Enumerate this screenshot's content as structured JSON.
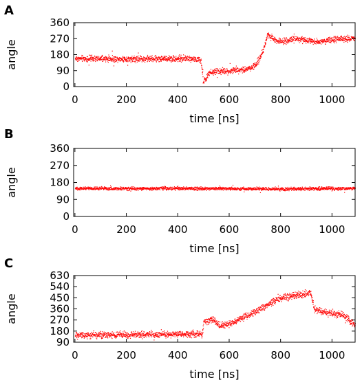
{
  "chart_data": [
    {
      "panel_label": "A",
      "type": "scatter",
      "xlabel": "time [ns]",
      "ylabel": "angle",
      "xlim": [
        -5,
        1090
      ],
      "ylim": [
        0,
        360
      ],
      "xticks": [
        0,
        200,
        400,
        600,
        800,
        1000
      ],
      "yticks": [
        0,
        90,
        180,
        270,
        360
      ],
      "grid": false,
      "color": "#ff0000",
      "trace": [
        {
          "x": 0,
          "y": 160
        },
        {
          "x": 100,
          "y": 158
        },
        {
          "x": 200,
          "y": 158
        },
        {
          "x": 300,
          "y": 159
        },
        {
          "x": 400,
          "y": 160
        },
        {
          "x": 450,
          "y": 160
        },
        {
          "x": 470,
          "y": 155
        },
        {
          "x": 490,
          "y": 145
        },
        {
          "x": 498,
          "y": 30
        },
        {
          "x": 505,
          "y": 40
        },
        {
          "x": 520,
          "y": 75
        },
        {
          "x": 550,
          "y": 90
        },
        {
          "x": 580,
          "y": 85
        },
        {
          "x": 620,
          "y": 95
        },
        {
          "x": 660,
          "y": 100
        },
        {
          "x": 690,
          "y": 110
        },
        {
          "x": 710,
          "y": 140
        },
        {
          "x": 730,
          "y": 200
        },
        {
          "x": 750,
          "y": 300
        },
        {
          "x": 770,
          "y": 270
        },
        {
          "x": 800,
          "y": 255
        },
        {
          "x": 850,
          "y": 270
        },
        {
          "x": 900,
          "y": 265
        },
        {
          "x": 950,
          "y": 255
        },
        {
          "x": 1000,
          "y": 265
        },
        {
          "x": 1050,
          "y": 270
        },
        {
          "x": 1090,
          "y": 275
        }
      ],
      "noise": 12
    },
    {
      "panel_label": "B",
      "type": "scatter",
      "xlabel": "time [ns]",
      "ylabel": "angle",
      "xlim": [
        -5,
        1090
      ],
      "ylim": [
        0,
        360
      ],
      "xticks": [
        0,
        200,
        400,
        600,
        800,
        1000
      ],
      "yticks": [
        0,
        90,
        180,
        270,
        360
      ],
      "grid": false,
      "color": "#ff0000",
      "trace": [
        {
          "x": 0,
          "y": 150
        },
        {
          "x": 200,
          "y": 150
        },
        {
          "x": 400,
          "y": 150
        },
        {
          "x": 600,
          "y": 149
        },
        {
          "x": 800,
          "y": 147
        },
        {
          "x": 1000,
          "y": 150
        },
        {
          "x": 1090,
          "y": 150
        }
      ],
      "noise": 6
    },
    {
      "panel_label": "C",
      "type": "scatter",
      "xlabel": "time [ns]",
      "ylabel": "angle",
      "xlim": [
        -5,
        1090
      ],
      "ylim": [
        90,
        630
      ],
      "xticks": [
        0,
        200,
        400,
        600,
        800,
        1000
      ],
      "yticks": [
        90,
        180,
        270,
        360,
        450,
        540,
        630
      ],
      "grid": false,
      "color": "#ff0000",
      "trace": [
        {
          "x": 0,
          "y": 150
        },
        {
          "x": 100,
          "y": 152
        },
        {
          "x": 200,
          "y": 155
        },
        {
          "x": 300,
          "y": 157
        },
        {
          "x": 400,
          "y": 158
        },
        {
          "x": 495,
          "y": 158
        },
        {
          "x": 500,
          "y": 265
        },
        {
          "x": 540,
          "y": 270
        },
        {
          "x": 560,
          "y": 230
        },
        {
          "x": 600,
          "y": 240
        },
        {
          "x": 650,
          "y": 290
        },
        {
          "x": 700,
          "y": 340
        },
        {
          "x": 750,
          "y": 400
        },
        {
          "x": 800,
          "y": 450
        },
        {
          "x": 850,
          "y": 470
        },
        {
          "x": 900,
          "y": 480
        },
        {
          "x": 915,
          "y": 500
        },
        {
          "x": 930,
          "y": 360
        },
        {
          "x": 980,
          "y": 330
        },
        {
          "x": 1030,
          "y": 320
        },
        {
          "x": 1060,
          "y": 290
        },
        {
          "x": 1080,
          "y": 240
        },
        {
          "x": 1090,
          "y": 220
        }
      ],
      "noise": 18
    }
  ]
}
